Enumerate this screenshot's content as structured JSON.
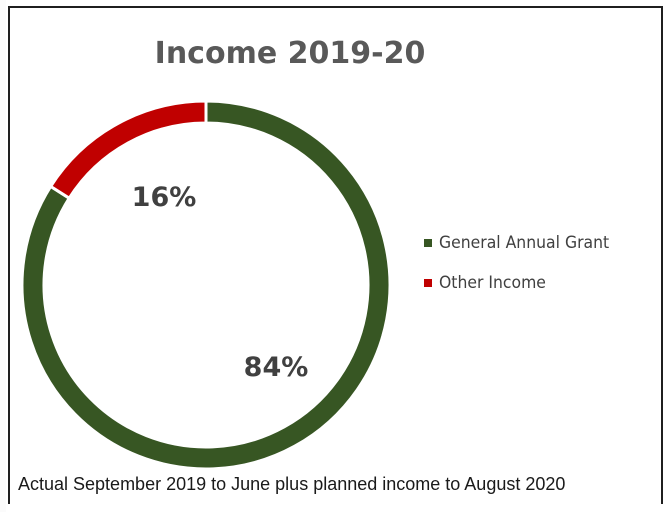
{
  "chart_data": {
    "type": "pie",
    "title": "Income 2019-20",
    "categories": [
      "General Annual Grant",
      "Other Income"
    ],
    "values": [
      84,
      16
    ],
    "labels": [
      "84%",
      "16%"
    ],
    "colors": [
      "#375623",
      "#c00000"
    ],
    "legend_position": "right",
    "donut": true
  },
  "caption": "Actual September 2019 to June plus planned income to August 2020"
}
